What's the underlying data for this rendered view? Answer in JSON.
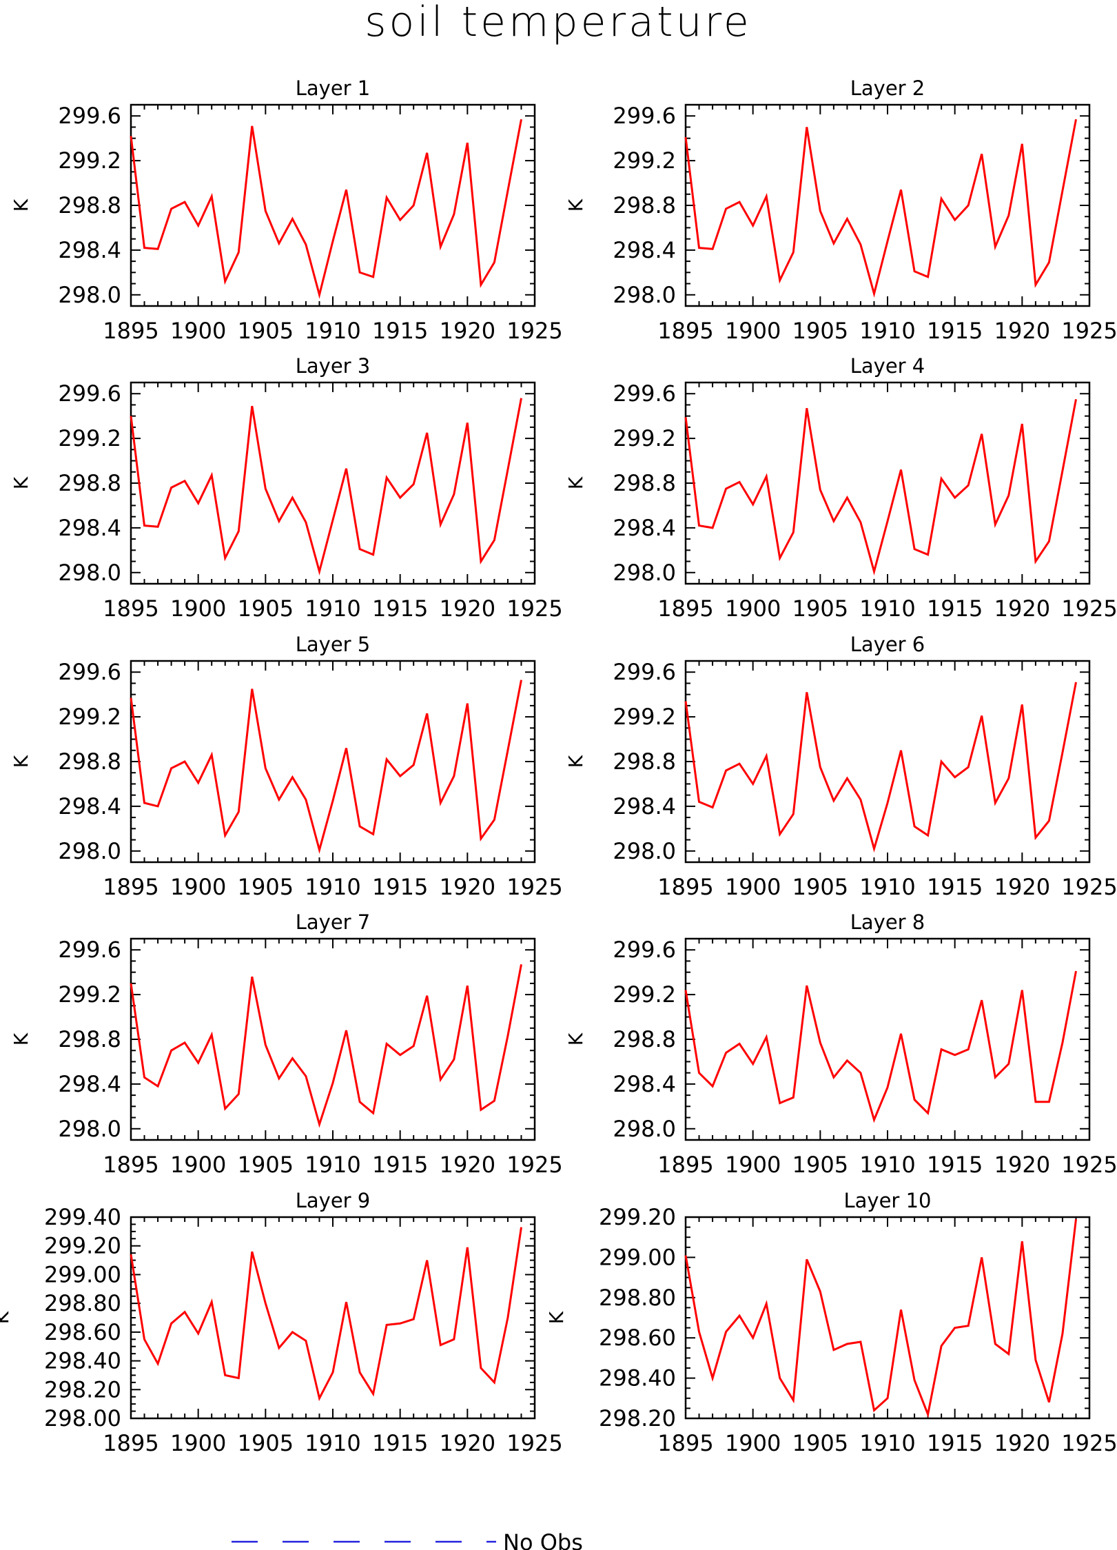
{
  "figure": {
    "title": "soil temperature",
    "legend": {
      "label": "No Obs",
      "line_color": "#2222dd",
      "line_style": "dashed"
    }
  },
  "colors": {
    "series": "#ff0000",
    "axis": "#000000"
  },
  "chart_data": [
    {
      "type": "line",
      "title": "Layer 1",
      "xlabel": "",
      "ylabel": "K",
      "xlim": [
        1895,
        1925
      ],
      "ylim": [
        297.9,
        299.7
      ],
      "yticks": [
        "298.0",
        "298.4",
        "298.8",
        "299.2",
        "299.6"
      ],
      "ytick_values": [
        298.0,
        298.4,
        298.8,
        299.2,
        299.6
      ],
      "xticks": [
        "1895",
        "1900",
        "1905",
        "1910",
        "1915",
        "1920",
        "1925"
      ],
      "x": [
        1895,
        1896,
        1897,
        1898,
        1899,
        1900,
        1901,
        1902,
        1903,
        1904,
        1905,
        1906,
        1907,
        1908,
        1909,
        1910,
        1911,
        1912,
        1913,
        1914,
        1915,
        1916,
        1917,
        1918,
        1919,
        1920,
        1921,
        1922,
        1923,
        1924
      ],
      "values": [
        299.42,
        298.42,
        298.41,
        298.77,
        298.83,
        298.62,
        298.88,
        298.12,
        298.38,
        299.51,
        298.75,
        298.46,
        298.68,
        298.45,
        298.0,
        298.48,
        298.94,
        298.2,
        298.16,
        298.87,
        298.67,
        298.8,
        299.27,
        298.43,
        298.72,
        299.36,
        298.09,
        298.29,
        298.93,
        299.57
      ]
    },
    {
      "type": "line",
      "title": "Layer 2",
      "xlabel": "",
      "ylabel": "K",
      "xlim": [
        1895,
        1925
      ],
      "ylim": [
        297.9,
        299.7
      ],
      "yticks": [
        "298.0",
        "298.4",
        "298.8",
        "299.2",
        "299.6"
      ],
      "ytick_values": [
        298.0,
        298.4,
        298.8,
        299.2,
        299.6
      ],
      "xticks": [
        "1895",
        "1900",
        "1905",
        "1910",
        "1915",
        "1920",
        "1925"
      ],
      "x": [
        1895,
        1896,
        1897,
        1898,
        1899,
        1900,
        1901,
        1902,
        1903,
        1904,
        1905,
        1906,
        1907,
        1908,
        1909,
        1910,
        1911,
        1912,
        1913,
        1914,
        1915,
        1916,
        1917,
        1918,
        1919,
        1920,
        1921,
        1922,
        1923,
        1924
      ],
      "values": [
        299.41,
        298.42,
        298.41,
        298.77,
        298.83,
        298.62,
        298.88,
        298.13,
        298.38,
        299.5,
        298.75,
        298.46,
        298.68,
        298.45,
        298.01,
        298.48,
        298.94,
        298.21,
        298.16,
        298.86,
        298.67,
        298.8,
        299.26,
        298.43,
        298.71,
        299.35,
        298.09,
        298.29,
        298.93,
        299.57
      ]
    },
    {
      "type": "line",
      "title": "Layer 3",
      "xlabel": "",
      "ylabel": "K",
      "xlim": [
        1895,
        1925
      ],
      "ylim": [
        297.9,
        299.7
      ],
      "yticks": [
        "298.0",
        "298.4",
        "298.8",
        "299.2",
        "299.6"
      ],
      "ytick_values": [
        298.0,
        298.4,
        298.8,
        299.2,
        299.6
      ],
      "xticks": [
        "1895",
        "1900",
        "1905",
        "1910",
        "1915",
        "1920",
        "1925"
      ],
      "x": [
        1895,
        1896,
        1897,
        1898,
        1899,
        1900,
        1901,
        1902,
        1903,
        1904,
        1905,
        1906,
        1907,
        1908,
        1909,
        1910,
        1911,
        1912,
        1913,
        1914,
        1915,
        1916,
        1917,
        1918,
        1919,
        1920,
        1921,
        1922,
        1923,
        1924
      ],
      "values": [
        299.4,
        298.42,
        298.41,
        298.76,
        298.82,
        298.62,
        298.87,
        298.13,
        298.37,
        299.49,
        298.75,
        298.46,
        298.67,
        298.45,
        298.01,
        298.47,
        298.93,
        298.21,
        298.16,
        298.85,
        298.67,
        298.79,
        299.25,
        298.43,
        298.7,
        299.34,
        298.1,
        298.29,
        298.92,
        299.56
      ]
    },
    {
      "type": "line",
      "title": "Layer 4",
      "xlabel": "",
      "ylabel": "K",
      "xlim": [
        1895,
        1925
      ],
      "ylim": [
        297.9,
        299.7
      ],
      "yticks": [
        "298.0",
        "298.4",
        "298.8",
        "299.2",
        "299.6"
      ],
      "ytick_values": [
        298.0,
        298.4,
        298.8,
        299.2,
        299.6
      ],
      "xticks": [
        "1895",
        "1900",
        "1905",
        "1910",
        "1915",
        "1920",
        "1925"
      ],
      "x": [
        1895,
        1896,
        1897,
        1898,
        1899,
        1900,
        1901,
        1902,
        1903,
        1904,
        1905,
        1906,
        1907,
        1908,
        1909,
        1910,
        1911,
        1912,
        1913,
        1914,
        1915,
        1916,
        1917,
        1918,
        1919,
        1920,
        1921,
        1922,
        1923,
        1924
      ],
      "values": [
        299.39,
        298.42,
        298.4,
        298.75,
        298.81,
        298.61,
        298.86,
        298.13,
        298.36,
        299.47,
        298.74,
        298.46,
        298.67,
        298.45,
        298.01,
        298.46,
        298.92,
        298.21,
        298.16,
        298.84,
        298.67,
        298.78,
        299.24,
        298.43,
        298.69,
        299.33,
        298.1,
        298.28,
        298.91,
        299.55
      ]
    },
    {
      "type": "line",
      "title": "Layer 5",
      "xlabel": "",
      "ylabel": "K",
      "xlim": [
        1895,
        1925
      ],
      "ylim": [
        297.9,
        299.7
      ],
      "yticks": [
        "298.0",
        "298.4",
        "298.8",
        "299.2",
        "299.6"
      ],
      "ytick_values": [
        298.0,
        298.4,
        298.8,
        299.2,
        299.6
      ],
      "xticks": [
        "1895",
        "1900",
        "1905",
        "1910",
        "1915",
        "1920",
        "1925"
      ],
      "x": [
        1895,
        1896,
        1897,
        1898,
        1899,
        1900,
        1901,
        1902,
        1903,
        1904,
        1905,
        1906,
        1907,
        1908,
        1909,
        1910,
        1911,
        1912,
        1913,
        1914,
        1915,
        1916,
        1917,
        1918,
        1919,
        1920,
        1921,
        1922,
        1923,
        1924
      ],
      "values": [
        299.37,
        298.43,
        298.4,
        298.74,
        298.8,
        298.61,
        298.86,
        298.14,
        298.35,
        299.45,
        298.74,
        298.46,
        298.66,
        298.46,
        298.01,
        298.45,
        298.92,
        298.22,
        298.15,
        298.82,
        298.67,
        298.77,
        299.23,
        298.43,
        298.67,
        299.32,
        298.11,
        298.28,
        298.9,
        299.53
      ]
    },
    {
      "type": "line",
      "title": "Layer 6",
      "xlabel": "",
      "ylabel": "K",
      "xlim": [
        1895,
        1925
      ],
      "ylim": [
        297.9,
        299.7
      ],
      "yticks": [
        "298.0",
        "298.4",
        "298.8",
        "299.2",
        "299.6"
      ],
      "ytick_values": [
        298.0,
        298.4,
        298.8,
        299.2,
        299.6
      ],
      "xticks": [
        "1895",
        "1900",
        "1905",
        "1910",
        "1915",
        "1920",
        "1925"
      ],
      "x": [
        1895,
        1896,
        1897,
        1898,
        1899,
        1900,
        1901,
        1902,
        1903,
        1904,
        1905,
        1906,
        1907,
        1908,
        1909,
        1910,
        1911,
        1912,
        1913,
        1914,
        1915,
        1916,
        1917,
        1918,
        1919,
        1920,
        1921,
        1922,
        1923,
        1924
      ],
      "values": [
        299.34,
        298.44,
        298.39,
        298.72,
        298.78,
        298.6,
        298.85,
        298.15,
        298.33,
        299.42,
        298.75,
        298.45,
        298.65,
        298.46,
        298.02,
        298.43,
        298.9,
        298.22,
        298.14,
        298.8,
        298.66,
        298.75,
        299.21,
        298.43,
        298.65,
        299.31,
        298.12,
        298.27,
        298.88,
        299.51
      ]
    },
    {
      "type": "line",
      "title": "Layer 7",
      "xlabel": "",
      "ylabel": "K",
      "xlim": [
        1895,
        1925
      ],
      "ylim": [
        297.9,
        299.7
      ],
      "yticks": [
        "298.0",
        "298.4",
        "298.8",
        "299.2",
        "299.6"
      ],
      "ytick_values": [
        298.0,
        298.4,
        298.8,
        299.2,
        299.6
      ],
      "xticks": [
        "1895",
        "1900",
        "1905",
        "1910",
        "1915",
        "1920",
        "1925"
      ],
      "x": [
        1895,
        1896,
        1897,
        1898,
        1899,
        1900,
        1901,
        1902,
        1903,
        1904,
        1905,
        1906,
        1907,
        1908,
        1909,
        1910,
        1911,
        1912,
        1913,
        1914,
        1915,
        1916,
        1917,
        1918,
        1919,
        1920,
        1921,
        1922,
        1923,
        1924
      ],
      "values": [
        299.3,
        298.46,
        298.38,
        298.7,
        298.77,
        298.59,
        298.84,
        298.18,
        298.31,
        299.36,
        298.75,
        298.45,
        298.63,
        298.47,
        298.04,
        298.41,
        298.88,
        298.24,
        298.14,
        298.76,
        298.66,
        298.74,
        299.19,
        298.44,
        298.62,
        299.28,
        298.17,
        298.25,
        298.83,
        299.47
      ]
    },
    {
      "type": "line",
      "title": "Layer 8",
      "xlabel": "",
      "ylabel": "K",
      "xlim": [
        1895,
        1925
      ],
      "ylim": [
        297.9,
        299.7
      ],
      "yticks": [
        "298.0",
        "298.4",
        "298.8",
        "299.2",
        "299.6"
      ],
      "ytick_values": [
        298.0,
        298.4,
        298.8,
        299.2,
        299.6
      ],
      "xticks": [
        "1895",
        "1900",
        "1905",
        "1910",
        "1915",
        "1920",
        "1925"
      ],
      "x": [
        1895,
        1896,
        1897,
        1898,
        1899,
        1900,
        1901,
        1902,
        1903,
        1904,
        1905,
        1906,
        1907,
        1908,
        1909,
        1910,
        1911,
        1912,
        1913,
        1914,
        1915,
        1916,
        1917,
        1918,
        1919,
        1920,
        1921,
        1922,
        1923,
        1924
      ],
      "values": [
        299.24,
        298.5,
        298.38,
        298.68,
        298.76,
        298.58,
        298.82,
        298.23,
        298.28,
        299.28,
        298.77,
        298.46,
        298.61,
        298.5,
        298.08,
        298.37,
        298.85,
        298.26,
        298.14,
        298.71,
        298.66,
        298.71,
        299.15,
        298.46,
        298.58,
        299.24,
        298.24,
        298.24,
        298.77,
        299.41
      ]
    },
    {
      "type": "line",
      "title": "Layer 9",
      "xlabel": "",
      "ylabel": "K",
      "xlim": [
        1895,
        1925
      ],
      "ylim": [
        298.0,
        299.4
      ],
      "yticks": [
        "298.00",
        "298.20",
        "298.40",
        "298.60",
        "298.80",
        "299.00",
        "299.20",
        "299.40"
      ],
      "ytick_values": [
        298.0,
        298.2,
        298.4,
        298.6,
        298.8,
        299.0,
        299.2,
        299.4
      ],
      "xticks": [
        "1895",
        "1900",
        "1905",
        "1910",
        "1915",
        "1920",
        "1925"
      ],
      "x": [
        1895,
        1896,
        1897,
        1898,
        1899,
        1900,
        1901,
        1902,
        1903,
        1904,
        1905,
        1906,
        1907,
        1908,
        1909,
        1910,
        1911,
        1912,
        1913,
        1914,
        1915,
        1916,
        1917,
        1918,
        1919,
        1920,
        1921,
        1922,
        1923,
        1924
      ],
      "values": [
        299.14,
        298.55,
        298.38,
        298.66,
        298.74,
        298.59,
        298.81,
        298.3,
        298.28,
        299.16,
        298.8,
        298.49,
        298.6,
        298.54,
        298.14,
        298.32,
        298.81,
        298.32,
        298.17,
        298.65,
        298.66,
        298.69,
        299.1,
        298.51,
        298.55,
        299.19,
        298.35,
        298.25,
        298.7,
        299.33
      ]
    },
    {
      "type": "line",
      "title": "Layer 10",
      "xlabel": "",
      "ylabel": "K",
      "xlim": [
        1895,
        1925
      ],
      "ylim": [
        298.2,
        299.2
      ],
      "yticks": [
        "298.20",
        "298.40",
        "298.60",
        "298.80",
        "299.00",
        "299.20"
      ],
      "ytick_values": [
        298.2,
        298.4,
        298.6,
        298.8,
        299.0,
        299.2
      ],
      "xticks": [
        "1895",
        "1900",
        "1905",
        "1910",
        "1915",
        "1920",
        "1925"
      ],
      "x": [
        1895,
        1896,
        1897,
        1898,
        1899,
        1900,
        1901,
        1902,
        1903,
        1904,
        1905,
        1906,
        1907,
        1908,
        1909,
        1910,
        1911,
        1912,
        1913,
        1914,
        1915,
        1916,
        1917,
        1918,
        1919,
        1920,
        1921,
        1922,
        1923,
        1924
      ],
      "values": [
        299.01,
        298.63,
        298.4,
        298.63,
        298.71,
        298.6,
        298.77,
        298.4,
        298.29,
        298.99,
        298.83,
        298.54,
        298.57,
        298.58,
        298.24,
        298.3,
        298.74,
        298.39,
        298.22,
        298.56,
        298.65,
        298.66,
        299.0,
        298.57,
        298.52,
        299.08,
        298.49,
        298.28,
        298.62,
        299.19
      ]
    }
  ]
}
